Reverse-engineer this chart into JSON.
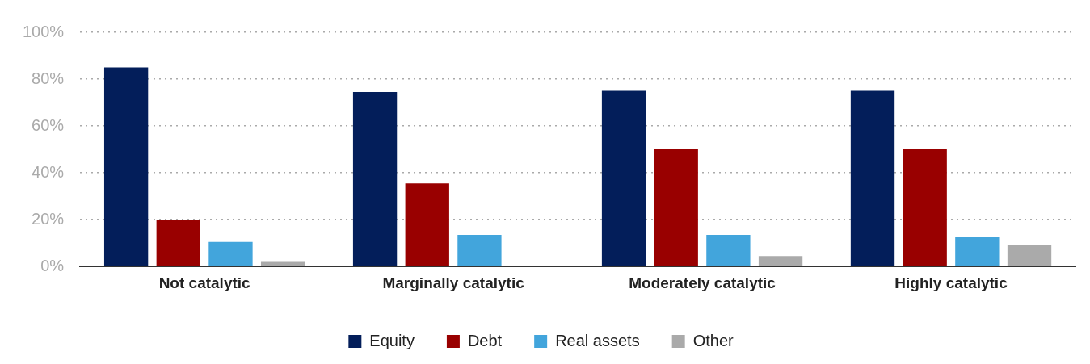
{
  "chart_data": {
    "type": "bar",
    "categories": [
      "Not catalytic",
      "Marginally catalytic",
      "Moderately catalytic",
      "Highly catalytic"
    ],
    "series": [
      {
        "name": "Equity",
        "color": "#031e5a",
        "values": [
          85,
          74.5,
          75,
          75
        ]
      },
      {
        "name": "Debt",
        "color": "#990000",
        "values": [
          20,
          35.5,
          50,
          50
        ]
      },
      {
        "name": "Real assets",
        "color": "#42a5dc",
        "values": [
          10.5,
          13.5,
          13.5,
          12.5
        ]
      },
      {
        "name": "Other",
        "color": "#aaaaaa",
        "values": [
          2,
          null,
          4.5,
          9
        ]
      }
    ],
    "ylim": [
      0,
      100
    ],
    "yticks": [
      {
        "value": 0,
        "label": "0%"
      },
      {
        "value": 20,
        "label": "20%"
      },
      {
        "value": 40,
        "label": "40%"
      },
      {
        "value": 60,
        "label": "60%"
      },
      {
        "value": 80,
        "label": "80%"
      },
      {
        "value": 100,
        "label": "100%"
      }
    ],
    "grid": "y",
    "legend": "bottom"
  }
}
